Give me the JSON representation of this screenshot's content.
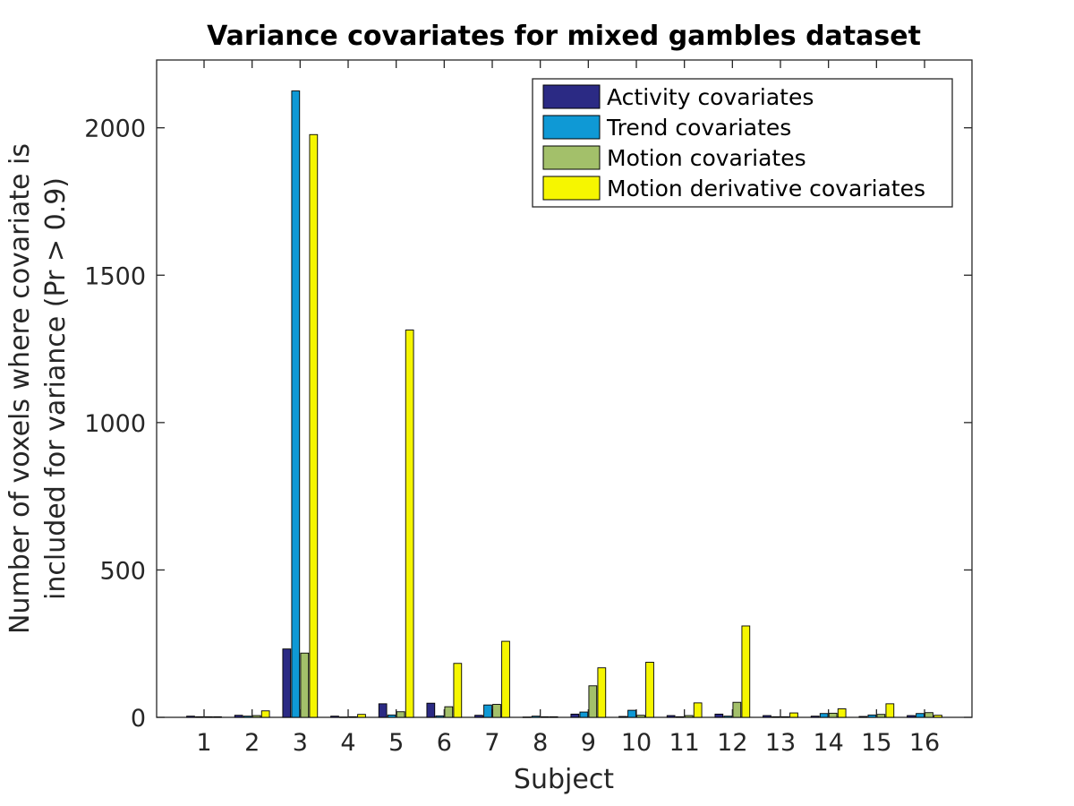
{
  "chart_data": {
    "type": "bar",
    "title": "Variance covariates for mixed gambles dataset",
    "xlabel": "Subject",
    "ylabel_lines": [
      "Number of voxels where covariate is",
      "included for variance (Pr > 0.9)"
    ],
    "categories": [
      "1",
      "2",
      "3",
      "4",
      "5",
      "6",
      "7",
      "8",
      "9",
      "10",
      "11",
      "12",
      "13",
      "14",
      "15",
      "16"
    ],
    "ylim": [
      0,
      2230
    ],
    "yticks": [
      0,
      500,
      1000,
      1500,
      2000
    ],
    "grid": false,
    "legend_position": "top-right",
    "series": [
      {
        "name": "Activity covariates",
        "color": "#2b2a84",
        "values": [
          4,
          7,
          232,
          4,
          46,
          48,
          7,
          1,
          11,
          3,
          6,
          11,
          6,
          4,
          3,
          6
        ]
      },
      {
        "name": "Trend covariates",
        "color": "#0f99d5",
        "values": [
          2,
          4,
          2125,
          1,
          8,
          5,
          42,
          4,
          18,
          24,
          2,
          4,
          2,
          13,
          8,
          13
        ]
      },
      {
        "name": "Motion covariates",
        "color": "#a3c06a",
        "values": [
          2,
          6,
          218,
          2,
          19,
          36,
          44,
          2,
          107,
          7,
          6,
          51,
          2,
          14,
          10,
          16
        ]
      },
      {
        "name": "Motion derivative covariates",
        "color": "#f6f600",
        "values": [
          2,
          22,
          1977,
          10,
          1314,
          183,
          258,
          2,
          168,
          187,
          49,
          310,
          15,
          29,
          46,
          7
        ]
      }
    ]
  }
}
